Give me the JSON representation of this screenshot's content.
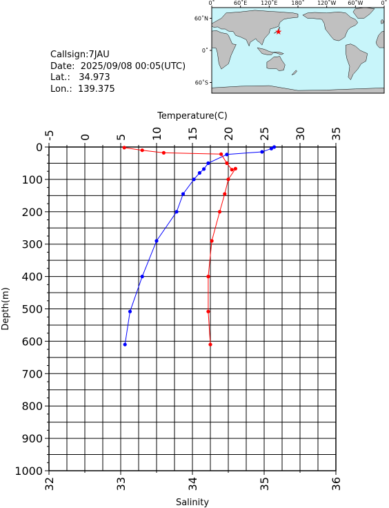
{
  "station": {
    "callsign": "Callsign:7JAU",
    "date": "Date:  2025/09/08 00:05(UTC)",
    "lat": "Lat.:   34.973",
    "lon": "Lon.:  139.375"
  },
  "map": {
    "lon_labels": [
      "0˚",
      "60˚E",
      "120˚E",
      "180˚",
      "120˚W",
      "60˚W",
      "0˚"
    ],
    "lat_labels": [
      "60˚N",
      "0˚",
      "60˚S"
    ],
    "colors": {
      "ocean": "#c8f5fa",
      "land": "#c0c0c0",
      "marker": "#ff0000"
    },
    "marker": {
      "lat": 34.973,
      "lon": 139.375
    }
  },
  "chart_data": {
    "type": "line",
    "title": "",
    "ylabel": "Depth(m)",
    "ylim": [
      1000,
      0
    ],
    "y_ticks": [
      "0",
      "100",
      "200",
      "300",
      "400",
      "500",
      "600",
      "700",
      "800",
      "900",
      "1000"
    ],
    "top_axis": {
      "label": "Temperature(C)",
      "range": [
        -5,
        35
      ],
      "ticks": [
        "-5",
        "0",
        "5",
        "10",
        "15",
        "20",
        "25",
        "30",
        "35"
      ]
    },
    "bottom_axis": {
      "label": "Salinity",
      "range": [
        32,
        36
      ],
      "ticks": [
        "32",
        "33",
        "34",
        "35",
        "36"
      ]
    },
    "grid": true,
    "series": [
      {
        "color": "#0000ff",
        "axis": "top",
        "points": [
          [
            26.4,
            0
          ],
          [
            26.0,
            5
          ],
          [
            24.7,
            15
          ],
          [
            19.8,
            23
          ],
          [
            17.2,
            50
          ],
          [
            16.6,
            68
          ],
          [
            16.0,
            80
          ],
          [
            15.2,
            100
          ],
          [
            13.7,
            145
          ],
          [
            12.8,
            200
          ],
          [
            10.0,
            290
          ],
          [
            8.0,
            400
          ],
          [
            6.3,
            508
          ],
          [
            5.6,
            610
          ]
        ]
      },
      {
        "color": "#ff0000",
        "axis": "bottom",
        "points": [
          [
            33.05,
            2
          ],
          [
            33.3,
            10
          ],
          [
            33.6,
            18
          ],
          [
            34.4,
            22
          ],
          [
            34.48,
            50
          ],
          [
            34.55,
            70
          ],
          [
            34.6,
            67
          ],
          [
            34.5,
            100
          ],
          [
            34.45,
            145
          ],
          [
            34.38,
            200
          ],
          [
            34.27,
            290
          ],
          [
            34.22,
            400
          ],
          [
            34.22,
            508
          ],
          [
            34.25,
            610
          ]
        ]
      }
    ]
  }
}
